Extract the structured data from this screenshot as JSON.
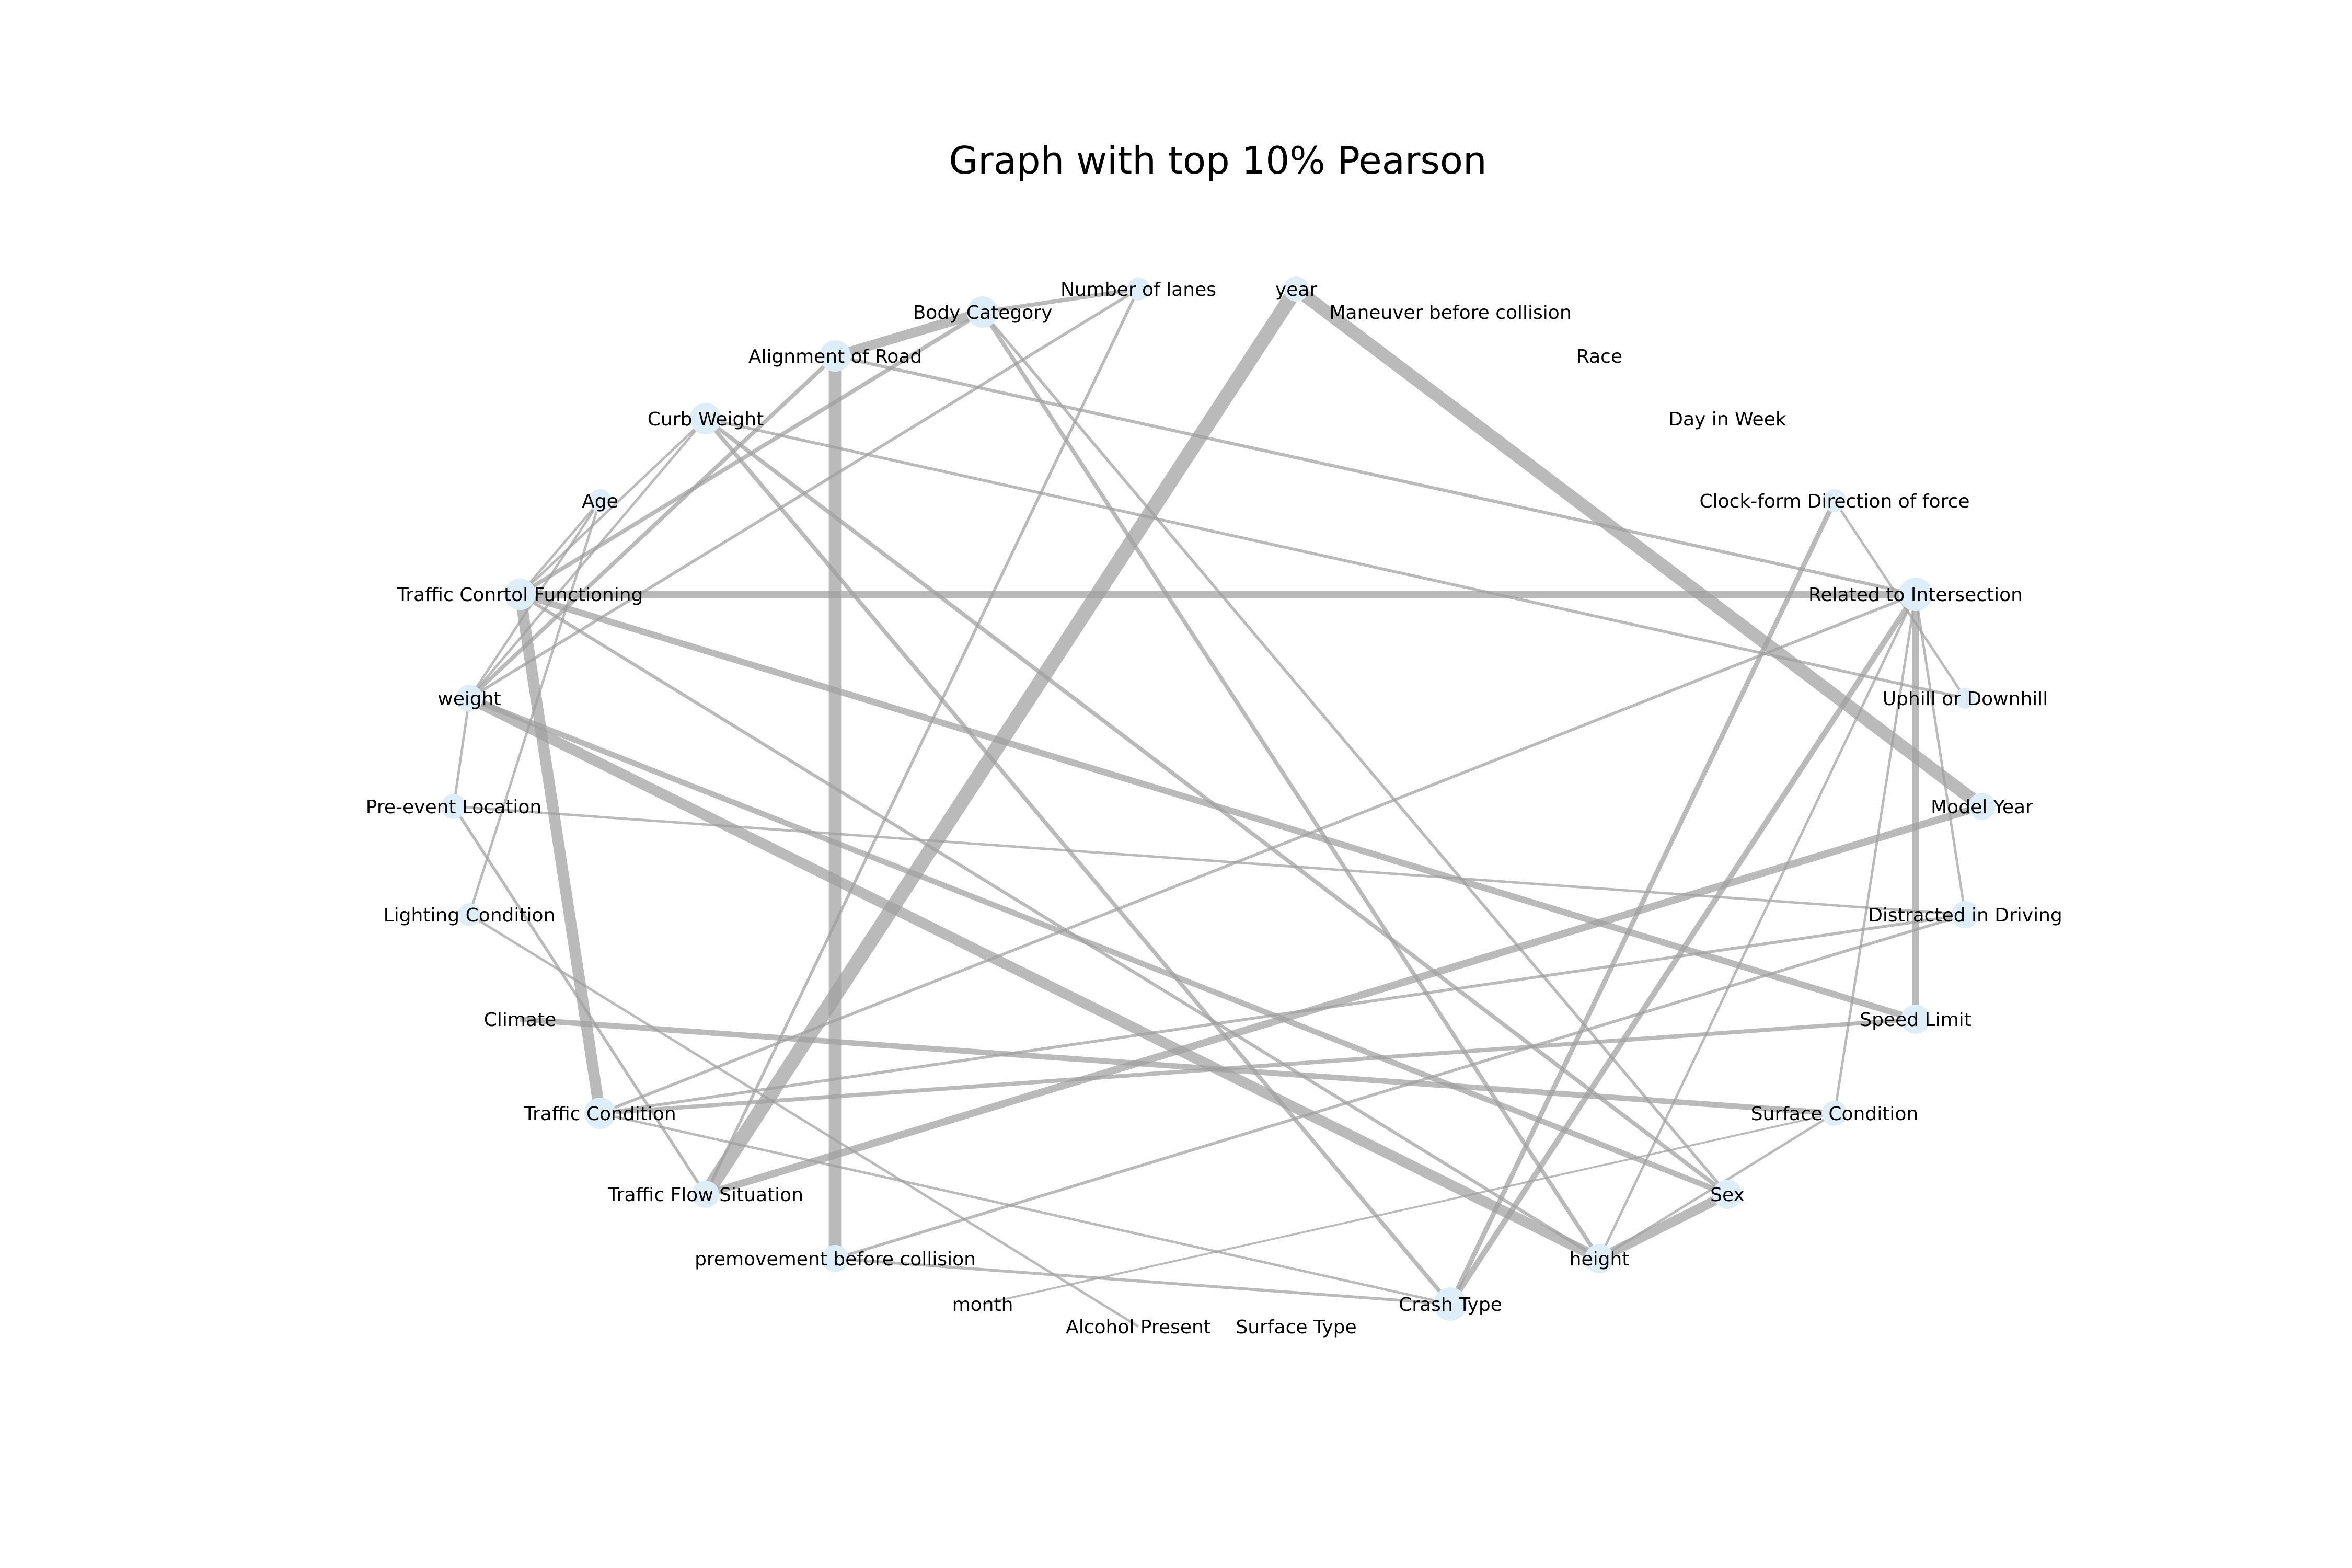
{
  "title": "Graph with top 10% Pearson",
  "colors": {
    "node": "#ddeef8",
    "edge": "#a0a0a0",
    "text": "#000000",
    "background": "#ffffff"
  },
  "nodes": [
    {
      "id": "year",
      "label": "year"
    },
    {
      "id": "maneuver",
      "label": "Maneuver before collision"
    },
    {
      "id": "race",
      "label": "Race"
    },
    {
      "id": "dayinweek",
      "label": "Day in Week"
    },
    {
      "id": "clockform",
      "label": "Clock-form Direction of force"
    },
    {
      "id": "related",
      "label": "Related to Intersection"
    },
    {
      "id": "uphill",
      "label": "Uphill or Downhill"
    },
    {
      "id": "modelyear",
      "label": "Model Year"
    },
    {
      "id": "distracted",
      "label": "Distracted in Driving"
    },
    {
      "id": "speedlimit",
      "label": "Speed Limit"
    },
    {
      "id": "surfacecond",
      "label": "Surface Condition"
    },
    {
      "id": "sex",
      "label": "Sex"
    },
    {
      "id": "height",
      "label": "height"
    },
    {
      "id": "crashtype",
      "label": "Crash Type"
    },
    {
      "id": "surfacetype",
      "label": "Surface Type"
    },
    {
      "id": "alcohol",
      "label": "Alcohol Present"
    },
    {
      "id": "month",
      "label": "month"
    },
    {
      "id": "premovement",
      "label": "premovement before collision"
    },
    {
      "id": "trafficflow",
      "label": "Traffic Flow Situation"
    },
    {
      "id": "trafficcond",
      "label": "Traffic Condition"
    },
    {
      "id": "climate",
      "label": "Climate"
    },
    {
      "id": "lighting",
      "label": "Lighting Condition"
    },
    {
      "id": "preevent",
      "label": "Pre-event Location"
    },
    {
      "id": "weight",
      "label": "weight"
    },
    {
      "id": "trafficcontrol",
      "label": "Traffic Conrtol Functioning"
    },
    {
      "id": "age",
      "label": "Age"
    },
    {
      "id": "curbweight",
      "label": "Curb Weight"
    },
    {
      "id": "alignment",
      "label": "Alignment of Road"
    },
    {
      "id": "bodycat",
      "label": "Body Category"
    },
    {
      "id": "lanes",
      "label": "Number of lanes"
    }
  ],
  "edges": [
    {
      "source": "year",
      "target": "trafficflow",
      "weight": 9
    },
    {
      "source": "year",
      "target": "modelyear",
      "weight": 8
    },
    {
      "source": "alignment",
      "target": "premovement",
      "weight": 8
    },
    {
      "source": "trafficcontrol",
      "target": "trafficcond",
      "weight": 7
    },
    {
      "source": "weight",
      "target": "height",
      "weight": 6.5
    },
    {
      "source": "alignment",
      "target": "bodycat",
      "weight": 6
    },
    {
      "source": "height",
      "target": "sex",
      "weight": 6
    },
    {
      "source": "trafficcontrol",
      "target": "related",
      "weight": 4.5
    },
    {
      "source": "trafficflow",
      "target": "modelyear",
      "weight": 4.5
    },
    {
      "source": "trafficcontrol",
      "target": "speedlimit",
      "weight": 4
    },
    {
      "source": "related",
      "target": "speedlimit",
      "weight": 4.5
    },
    {
      "source": "climate",
      "target": "surfacecond",
      "weight": 3.5
    },
    {
      "source": "weight",
      "target": "sex",
      "weight": 3.5
    },
    {
      "source": "related",
      "target": "crashtype",
      "weight": 3.5
    },
    {
      "source": "crashtype",
      "target": "clockform",
      "weight": 3
    },
    {
      "source": "trafficcond",
      "target": "speedlimit",
      "weight": 2.5
    },
    {
      "source": "bodycat",
      "target": "lanes",
      "weight": 2.5
    },
    {
      "source": "bodycat",
      "target": "height",
      "weight": 2.5
    },
    {
      "source": "curbweight",
      "target": "sex",
      "weight": 2.5
    },
    {
      "source": "curbweight",
      "target": "crashtype",
      "weight": 2.5
    },
    {
      "source": "trafficcontrol",
      "target": "bodycat",
      "weight": 2.5
    },
    {
      "source": "weight",
      "target": "alignment",
      "weight": 2.5
    },
    {
      "source": "trafficcontrol",
      "target": "height",
      "weight": 2
    },
    {
      "source": "alignment",
      "target": "related",
      "weight": 2
    },
    {
      "source": "curbweight",
      "target": "uphill",
      "weight": 1.8
    },
    {
      "source": "weight",
      "target": "lanes",
      "weight": 1.8
    },
    {
      "source": "lanes",
      "target": "trafficflow",
      "weight": 1.8
    },
    {
      "source": "bodycat",
      "target": "sex",
      "weight": 1.8
    },
    {
      "source": "trafficcond",
      "target": "related",
      "weight": 1.8
    },
    {
      "source": "trafficcond",
      "target": "distracted",
      "weight": 1.8
    },
    {
      "source": "premovement",
      "target": "distracted",
      "weight": 1.8
    },
    {
      "source": "premovement",
      "target": "crashtype",
      "weight": 1.8
    },
    {
      "source": "preevent",
      "target": "distracted",
      "weight": 1.5
    },
    {
      "source": "preevent",
      "target": "trafficflow",
      "weight": 1.8
    },
    {
      "source": "lighting",
      "target": "alcohol",
      "weight": 1.5
    },
    {
      "source": "trafficcond",
      "target": "crashtype",
      "weight": 1.5
    },
    {
      "source": "height",
      "target": "surfacecond",
      "weight": 1.5
    },
    {
      "source": "month",
      "target": "surfacecond",
      "weight": 1.2
    },
    {
      "source": "related",
      "target": "distracted",
      "weight": 1.5
    },
    {
      "source": "clockform",
      "target": "uphill",
      "weight": 1.5
    },
    {
      "source": "trafficcontrol",
      "target": "age",
      "weight": 1.5
    },
    {
      "source": "trafficcontrol",
      "target": "curbweight",
      "weight": 1.5
    },
    {
      "source": "weight",
      "target": "age",
      "weight": 1.5
    },
    {
      "source": "weight",
      "target": "curbweight",
      "weight": 1.5
    },
    {
      "source": "weight",
      "target": "preevent",
      "weight": 1.5
    },
    {
      "source": "lighting",
      "target": "age",
      "weight": 1.5
    },
    {
      "source": "related",
      "target": "surfacecond",
      "weight": 1.5
    },
    {
      "source": "related",
      "target": "height",
      "weight": 1.5
    }
  ]
}
